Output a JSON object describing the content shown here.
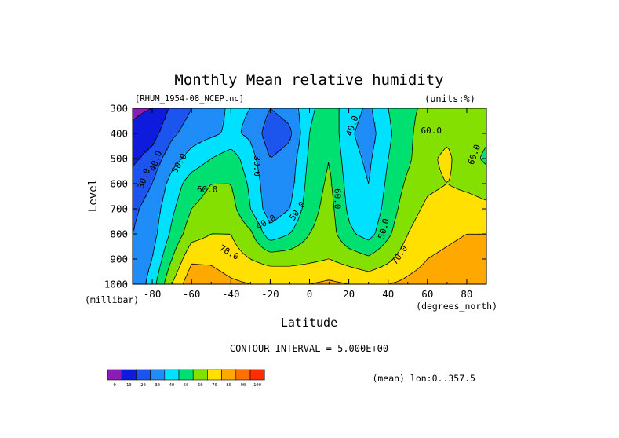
{
  "chart_data": {
    "type": "heatmap",
    "title": "Monthly Mean relative humidity",
    "source_label": "[RHUM_1954-08_NCEP.nc]",
    "units_label": "(units:%)",
    "xlabel": "Latitude",
    "x_unit_label": "(degrees_north)",
    "ylabel": "Level",
    "y_unit_label": "(millibar)",
    "contour_interval_text": "CONTOUR INTERVAL = 5.000E+00",
    "mean_text": "(mean) lon:0..357.5",
    "xlim": [
      -90,
      90
    ],
    "ylim": [
      1000,
      300
    ],
    "x_ticks": [
      {
        "value": -80,
        "label": "-80"
      },
      {
        "value": -60,
        "label": "-60"
      },
      {
        "value": -40,
        "label": "-40"
      },
      {
        "value": -20,
        "label": "-20"
      },
      {
        "value": 0,
        "label": "0"
      },
      {
        "value": 20,
        "label": "20"
      },
      {
        "value": 40,
        "label": "40"
      },
      {
        "value": 60,
        "label": "60"
      },
      {
        "value": 80,
        "label": "80"
      }
    ],
    "y_ticks": [
      {
        "value": 300,
        "label": "300"
      },
      {
        "value": 400,
        "label": "400"
      },
      {
        "value": 500,
        "label": "500"
      },
      {
        "value": 600,
        "label": "600"
      },
      {
        "value": 700,
        "label": "700"
      },
      {
        "value": 800,
        "label": "800"
      },
      {
        "value": 900,
        "label": "900"
      },
      {
        "value": 1000,
        "label": "1000"
      }
    ],
    "levels": [
      300,
      400,
      500,
      600,
      700,
      800,
      900,
      1000
    ],
    "latitudes": [
      -90,
      -80,
      -70,
      -60,
      -50,
      -40,
      -30,
      -20,
      -10,
      0,
      10,
      20,
      30,
      40,
      50,
      60,
      70,
      80,
      90
    ],
    "values": [
      [
        8,
        10,
        22,
        30,
        35,
        42,
        40,
        30,
        34,
        48,
        55,
        45,
        38,
        50,
        58,
        62,
        64,
        62,
        60
      ],
      [
        12,
        16,
        28,
        35,
        38,
        42,
        38,
        24,
        28,
        50,
        58,
        42,
        35,
        48,
        58,
        65,
        68,
        66,
        62
      ],
      [
        18,
        24,
        36,
        44,
        50,
        55,
        44,
        30,
        34,
        52,
        60,
        44,
        38,
        50,
        58,
        68,
        72,
        64,
        58
      ],
      [
        24,
        30,
        44,
        55,
        60,
        60,
        48,
        32,
        36,
        54,
        62,
        46,
        40,
        52,
        62,
        68,
        70,
        68,
        66
      ],
      [
        28,
        34,
        48,
        60,
        64,
        64,
        50,
        34,
        40,
        56,
        64,
        48,
        42,
        54,
        66,
        72,
        74,
        74,
        72
      ],
      [
        30,
        36,
        52,
        66,
        70,
        70,
        62,
        44,
        50,
        60,
        65,
        52,
        46,
        58,
        70,
        76,
        78,
        80,
        80
      ],
      [
        30,
        40,
        60,
        78,
        78,
        74,
        70,
        66,
        66,
        68,
        70,
        66,
        62,
        68,
        76,
        80,
        82,
        84,
        85
      ],
      [
        30,
        45,
        70,
        88,
        86,
        82,
        80,
        80,
        80,
        80,
        82,
        80,
        78,
        80,
        82,
        84,
        86,
        88,
        90
      ]
    ],
    "contour_labels": [
      {
        "text": "30.0",
        "x": -84,
        "y": 580,
        "rotate": -70
      },
      {
        "text": "40.0",
        "x": -78,
        "y": 510,
        "rotate": -70
      },
      {
        "text": "50.0",
        "x": -66,
        "y": 520,
        "rotate": -60
      },
      {
        "text": "60.0",
        "x": -52,
        "y": 625,
        "rotate": 0
      },
      {
        "text": "30.0",
        "x": -27,
        "y": 530,
        "rotate": 90
      },
      {
        "text": "40.0",
        "x": -22,
        "y": 755,
        "rotate": -30
      },
      {
        "text": "50.0",
        "x": -6,
        "y": 710,
        "rotate": -55
      },
      {
        "text": "60.0",
        "x": 14,
        "y": 660,
        "rotate": 90
      },
      {
        "text": "40.0",
        "x": 22,
        "y": 370,
        "rotate": -70
      },
      {
        "text": "60.0",
        "x": 62,
        "y": 390,
        "rotate": 0
      },
      {
        "text": "60.0",
        "x": 84,
        "y": 485,
        "rotate": -70
      },
      {
        "text": "50.0",
        "x": 38,
        "y": 780,
        "rotate": -75
      },
      {
        "text": "70.0",
        "x": -41,
        "y": 875,
        "rotate": 30
      },
      {
        "text": "70.0",
        "x": 46,
        "y": 885,
        "rotate": -55
      }
    ],
    "colorbar": {
      "colors": [
        "#8a1cb8",
        "#0f1bdc",
        "#1c55ee",
        "#1f8cf7",
        "#00e0ff",
        "#00e070",
        "#84e000",
        "#ffe000",
        "#ffa800",
        "#ff7000",
        "#ff2e00"
      ],
      "tick_labels": [
        "0",
        "10",
        "20",
        "30",
        "40",
        "50",
        "60",
        "70",
        "80",
        "90",
        "100"
      ]
    },
    "legend": "bottom-left colorbar",
    "grid": false
  }
}
